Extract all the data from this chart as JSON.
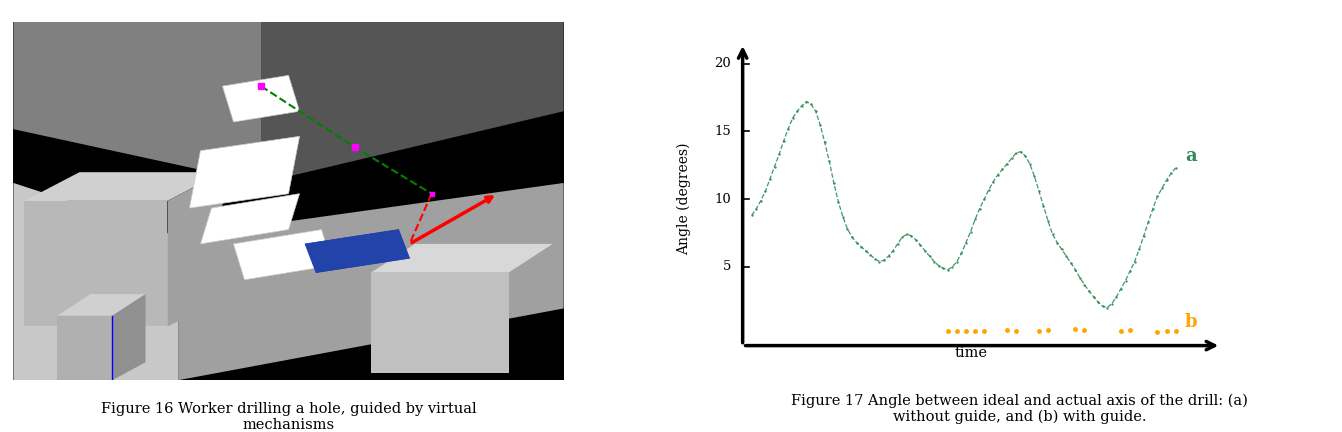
{
  "fig_width": 13.42,
  "fig_height": 4.32,
  "dpi": 100,
  "bg_color": "#ffffff",
  "left_caption": "Figure 16 Worker drilling a hole, guided by virtual\nmechanisms",
  "right_caption": "Figure 17 Angle between ideal and actual axis of the drill: (a)\nwithout guide, and (b) with guide.",
  "caption_fontsize": 10.5,
  "ylabel": "Angle (degrees)",
  "xlabel": "time",
  "yticks": [
    5,
    10,
    15,
    20
  ],
  "ylim": [
    -0.8,
    21.5
  ],
  "xlim": [
    -0.01,
    1.05
  ],
  "green_color": "#2e8b57",
  "orange_color": "#ffa500",
  "label_a": "a",
  "label_b": "b",
  "label_fontsize": 13,
  "series_a_x": [
    0.02,
    0.03,
    0.04,
    0.05,
    0.06,
    0.07,
    0.08,
    0.09,
    0.1,
    0.11,
    0.12,
    0.13,
    0.14,
    0.15,
    0.16,
    0.17,
    0.18,
    0.19,
    0.2,
    0.21,
    0.22,
    0.23,
    0.24,
    0.25,
    0.26,
    0.27,
    0.28,
    0.29,
    0.3,
    0.31,
    0.32,
    0.33,
    0.34,
    0.35,
    0.36,
    0.37,
    0.38,
    0.39,
    0.4,
    0.41,
    0.42,
    0.43,
    0.44,
    0.45,
    0.46,
    0.47,
    0.48,
    0.49,
    0.5,
    0.51,
    0.52,
    0.53,
    0.54,
    0.55,
    0.56,
    0.57,
    0.58,
    0.59,
    0.6,
    0.61,
    0.62,
    0.63,
    0.64,
    0.65,
    0.66,
    0.67,
    0.68,
    0.69,
    0.7,
    0.71,
    0.72,
    0.73,
    0.74,
    0.75,
    0.76,
    0.77,
    0.78,
    0.79,
    0.8,
    0.81,
    0.82,
    0.83,
    0.84,
    0.85,
    0.86,
    0.87,
    0.88,
    0.89,
    0.9,
    0.91,
    0.92,
    0.93,
    0.94,
    0.95
  ],
  "series_a_y": [
    8.8,
    9.3,
    9.9,
    10.6,
    11.5,
    12.4,
    13.3,
    14.3,
    15.2,
    16.0,
    16.5,
    16.9,
    17.2,
    17.0,
    16.5,
    15.5,
    14.2,
    12.8,
    11.2,
    9.8,
    8.7,
    7.8,
    7.2,
    6.8,
    6.5,
    6.2,
    5.9,
    5.6,
    5.4,
    5.5,
    5.8,
    6.2,
    6.7,
    7.2,
    7.4,
    7.3,
    7.0,
    6.6,
    6.2,
    5.8,
    5.4,
    5.1,
    4.9,
    4.8,
    5.0,
    5.4,
    6.0,
    6.8,
    7.6,
    8.5,
    9.3,
    10.0,
    10.7,
    11.3,
    11.8,
    12.2,
    12.6,
    13.0,
    13.4,
    13.5,
    13.2,
    12.6,
    11.7,
    10.6,
    9.5,
    8.4,
    7.4,
    6.8,
    6.3,
    5.8,
    5.3,
    4.8,
    4.2,
    3.7,
    3.2,
    2.8,
    2.4,
    2.1,
    2.0,
    2.3,
    2.8,
    3.4,
    4.0,
    4.7,
    5.4,
    6.3,
    7.3,
    8.3,
    9.3,
    10.2,
    10.8,
    11.4,
    11.9,
    12.3
  ],
  "series_b_x": [
    0.45,
    0.47,
    0.49,
    0.51,
    0.53,
    0.58,
    0.6,
    0.65,
    0.67,
    0.73,
    0.75,
    0.83,
    0.85,
    0.91,
    0.93,
    0.95
  ],
  "series_b_y": [
    0.25,
    0.3,
    0.25,
    0.28,
    0.25,
    0.35,
    0.3,
    0.28,
    0.32,
    0.4,
    0.35,
    0.28,
    0.32,
    0.22,
    0.28,
    0.25
  ]
}
